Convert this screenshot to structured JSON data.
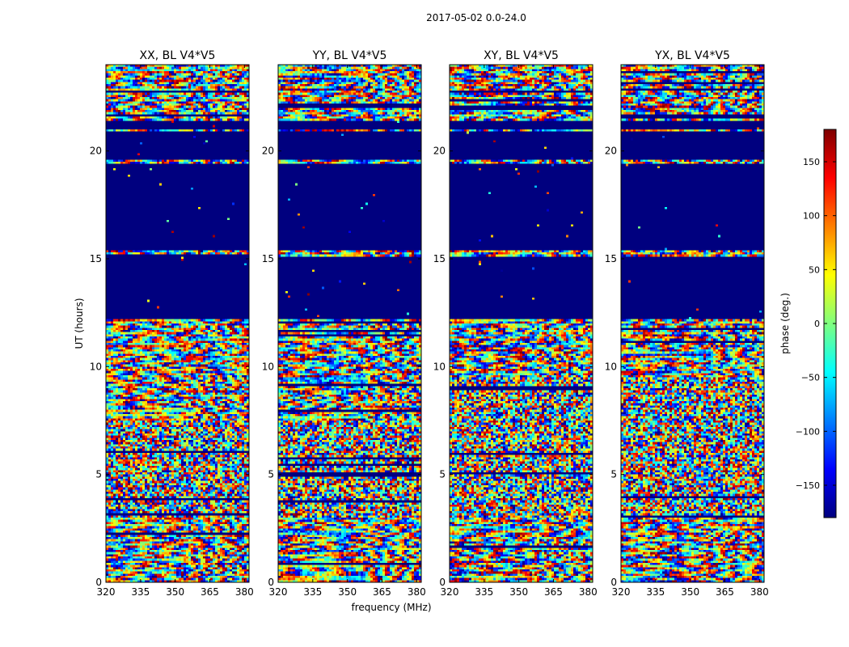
{
  "chart_data": {
    "type": "heatmap",
    "suptitle": "2017-05-02 0.0-24.0",
    "xlabel": "frequency (MHz)",
    "ylabel": "UT (hours)",
    "xlim": [
      320,
      382
    ],
    "ylim": [
      0,
      24
    ],
    "xticks": [
      320,
      335,
      350,
      365,
      380
    ],
    "yticks": [
      0,
      5,
      10,
      15,
      20
    ],
    "colormap": "jet",
    "colors": {
      "flagged": "#00007f",
      "frame": "#000000",
      "jet_stops": [
        "#00007f",
        "#0000ff",
        "#007fff",
        "#00ffff",
        "#7fff7f",
        "#ffff00",
        "#ff7f00",
        "#ff0000",
        "#7f0000"
      ]
    },
    "colorbar": {
      "label": "phase (deg.)",
      "range": [
        -180,
        180
      ],
      "ticks": [
        -150,
        -100,
        -50,
        0,
        50,
        100,
        150
      ],
      "tick_labels": [
        "−150",
        "−100",
        "−50",
        "0",
        "50",
        "100",
        "150"
      ]
    },
    "panels": [
      {
        "title": "XX, BL V4*V5"
      },
      {
        "title": "YY, BL V4*V5"
      },
      {
        "title": "XY, BL V4*V5"
      },
      {
        "title": "YX, BL V4*V5"
      }
    ],
    "flagged_hours": [
      [
        12.2,
        15.1
      ],
      [
        15.4,
        19.4
      ],
      [
        19.6,
        20.9
      ],
      [
        21.0,
        21.4
      ]
    ]
  }
}
